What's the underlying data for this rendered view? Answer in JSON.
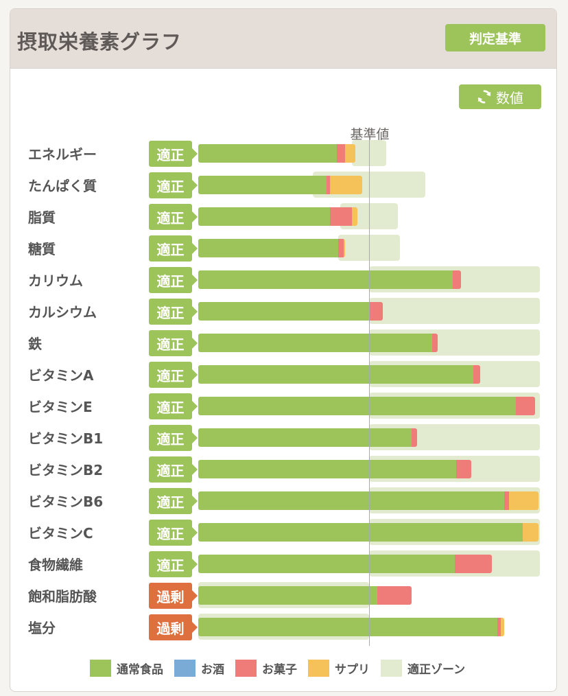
{
  "header": {
    "title": "摂取栄養素グラフ",
    "criteria_button": "判定基準"
  },
  "values_button": {
    "label": "数値",
    "icon": "refresh-icon"
  },
  "reference_label": "基準値",
  "colors": {
    "normal": "#9dc35b",
    "alcohol": "#7aaad6",
    "snack": "#ef7c78",
    "supplement": "#f5c25a",
    "zone": "#e2ebcf",
    "ok": "#9dc35b",
    "over": "#de6f3e"
  },
  "legend": [
    {
      "key": "normal",
      "label": "通常食品"
    },
    {
      "key": "alcohol",
      "label": "お酒"
    },
    {
      "key": "snack",
      "label": "お菓子"
    },
    {
      "key": "supplement",
      "label": "サプリ"
    },
    {
      "key": "zone",
      "label": "適正ゾーン"
    }
  ],
  "chart_data": {
    "type": "bar",
    "reference_percent": 100,
    "scale_max_percent": 200,
    "categories": [
      "エネルギー",
      "たんぱく質",
      "脂質",
      "糖質",
      "カリウム",
      "カルシウム",
      "鉄",
      "ビタミンA",
      "ビタミンE",
      "ビタミンB1",
      "ビタミンB2",
      "ビタミンB6",
      "ビタミンC",
      "食物繊維",
      "飽和脂肪酸",
      "塩分"
    ],
    "status": [
      "適正",
      "適正",
      "適正",
      "適正",
      "適正",
      "適正",
      "適正",
      "適正",
      "適正",
      "適正",
      "適正",
      "適正",
      "適正",
      "適正",
      "過剰",
      "過剰"
    ],
    "status_type": [
      "ok",
      "ok",
      "ok",
      "ok",
      "ok",
      "ok",
      "ok",
      "ok",
      "ok",
      "ok",
      "ok",
      "ok",
      "ok",
      "ok",
      "over",
      "over"
    ],
    "zone": [
      [
        90,
        110
      ],
      [
        67,
        133
      ],
      [
        83,
        117
      ],
      [
        82,
        118
      ],
      [
        100,
        200
      ],
      [
        100,
        200
      ],
      [
        100,
        200
      ],
      [
        100,
        200
      ],
      [
        100,
        200
      ],
      [
        100,
        200
      ],
      [
        100,
        200
      ],
      [
        100,
        200
      ],
      [
        100,
        200
      ],
      [
        100,
        200
      ],
      [
        0,
        100
      ],
      [
        0,
        100
      ]
    ],
    "series": [
      {
        "key": "normal",
        "values": [
          81,
          75,
          77,
          82,
          149,
          100,
          137,
          161,
          186,
          125,
          151,
          179,
          190,
          150,
          105,
          175
        ]
      },
      {
        "key": "alcohol",
        "values": [
          0,
          0,
          0,
          0,
          0,
          0,
          0,
          0,
          0,
          0,
          0,
          0,
          0,
          0,
          0,
          0
        ]
      },
      {
        "key": "snack",
        "values": [
          5,
          2,
          13,
          3,
          5,
          8,
          3,
          4,
          11,
          3,
          9,
          3,
          0,
          22,
          20,
          2
        ]
      },
      {
        "key": "supplement",
        "values": [
          6,
          19,
          3,
          1,
          0,
          0,
          0,
          0,
          0,
          0,
          0,
          17,
          9,
          0,
          0,
          2
        ]
      }
    ]
  }
}
